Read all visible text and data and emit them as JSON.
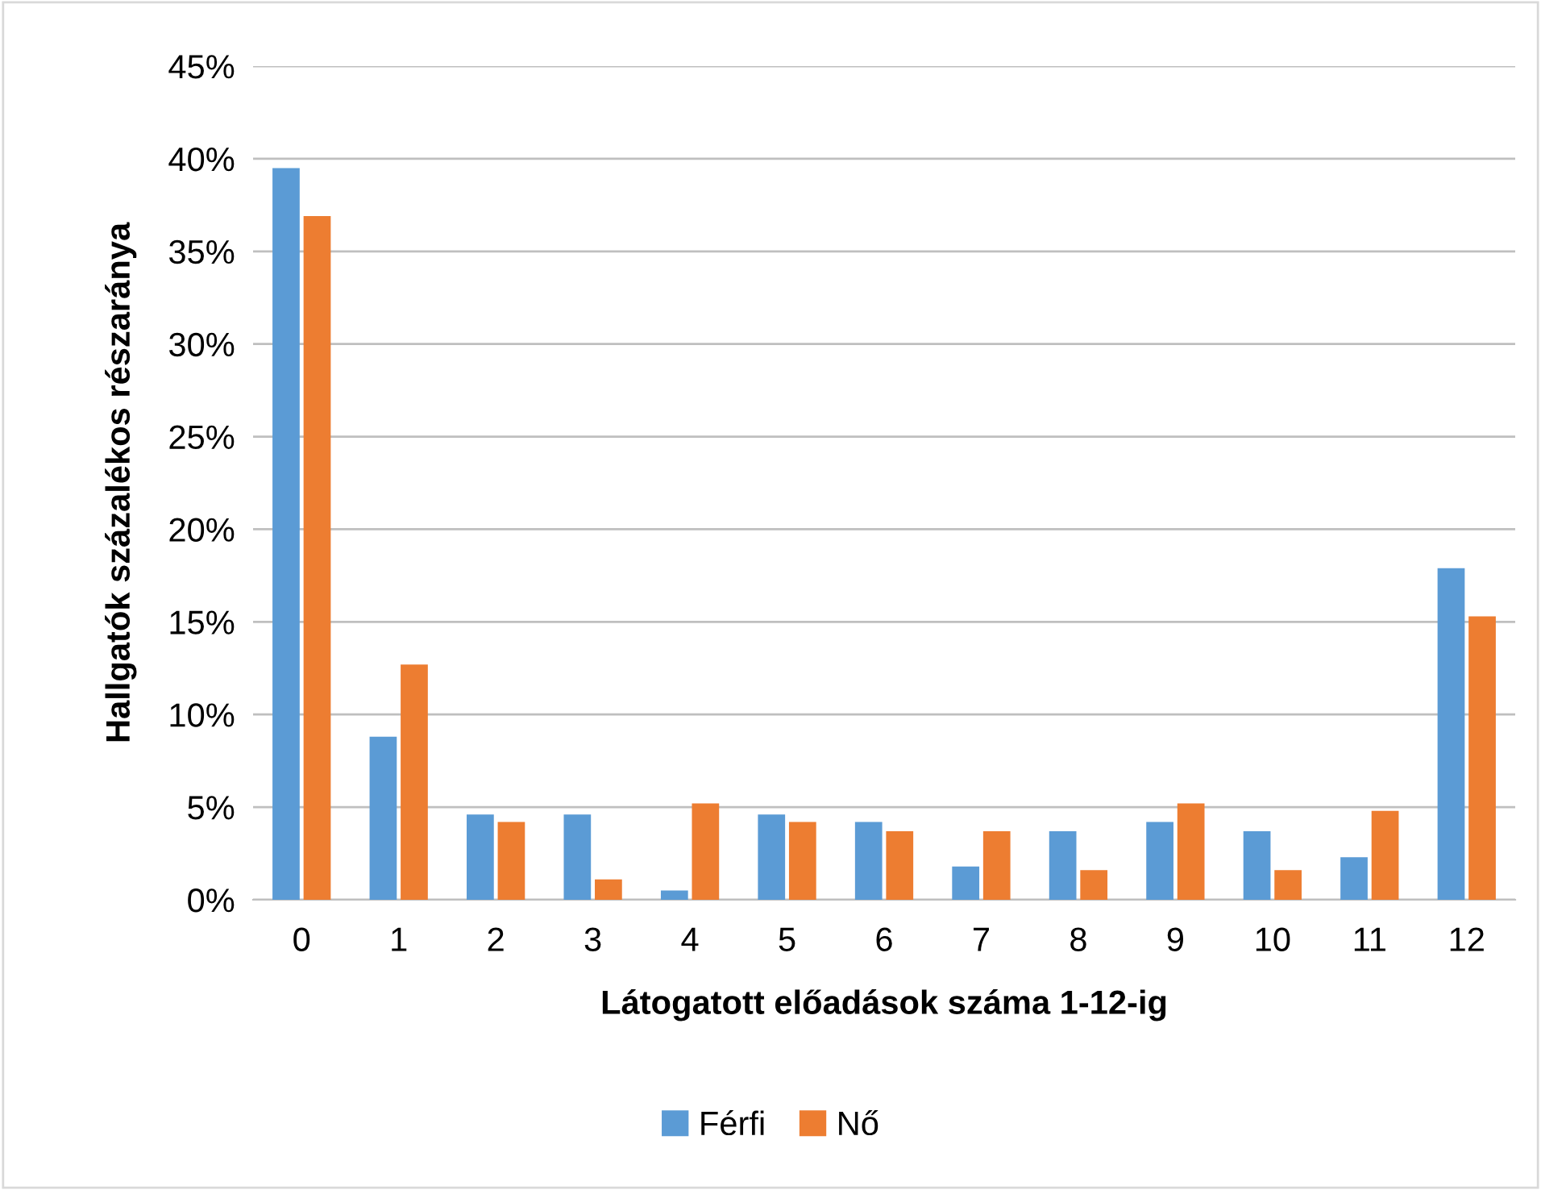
{
  "chart_data": {
    "type": "bar",
    "xlabel": "Látogatott előadások száma 1-12-ig",
    "ylabel": "Hallgatók százalékos részaránya",
    "categories": [
      "0",
      "1",
      "2",
      "3",
      "4",
      "5",
      "6",
      "7",
      "8",
      "9",
      "10",
      "11",
      "12"
    ],
    "series": [
      {
        "name": "Férfi",
        "color": "#5b9bd5",
        "values": [
          39.5,
          8.8,
          4.6,
          4.6,
          0.5,
          4.6,
          4.2,
          1.8,
          3.7,
          4.2,
          3.7,
          2.3,
          17.9
        ]
      },
      {
        "name": "Nő",
        "color": "#ed7d31",
        "values": [
          36.9,
          12.7,
          4.2,
          1.1,
          5.2,
          4.2,
          3.7,
          3.7,
          1.6,
          5.2,
          1.6,
          4.8,
          15.3
        ]
      }
    ],
    "ylim": [
      0,
      45
    ],
    "yticks": [
      {
        "value": 0,
        "label": "0%"
      },
      {
        "value": 5,
        "label": "5%"
      },
      {
        "value": 10,
        "label": "10%"
      },
      {
        "value": 15,
        "label": "15%"
      },
      {
        "value": 20,
        "label": "20%"
      },
      {
        "value": 25,
        "label": "25%"
      },
      {
        "value": 30,
        "label": "30%"
      },
      {
        "value": 35,
        "label": "35%"
      },
      {
        "value": 40,
        "label": "40%"
      },
      {
        "value": 45,
        "label": "45%"
      }
    ],
    "grid": "y",
    "legend": "bottom"
  }
}
